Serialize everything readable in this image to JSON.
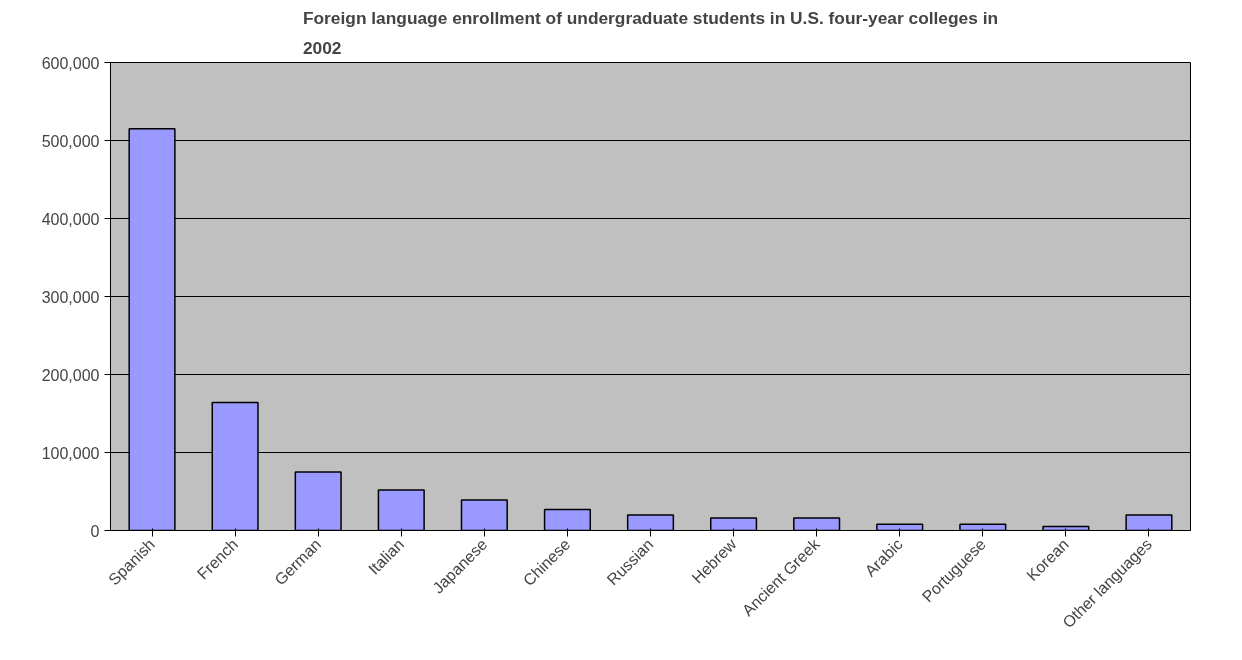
{
  "chart_data": {
    "type": "bar",
    "title": "Foreign language enrollment of undergraduate students in U.S. four-year colleges in\n2002",
    "categories": [
      "Spanish",
      "French",
      "German",
      "Italian",
      "Japanese",
      "Chinese",
      "Russian",
      "Hebrew",
      "Ancient Greek",
      "Arabic",
      "Portuguese",
      "Korean",
      "Other languages"
    ],
    "values": [
      515000,
      164000,
      75000,
      52000,
      39000,
      27000,
      20000,
      16000,
      16000,
      8000,
      8000,
      5000,
      20000
    ],
    "color": "#9999ff",
    "ylim": [
      0,
      600000
    ],
    "yticks": [
      {
        "value": 0,
        "label": "0"
      },
      {
        "value": 100000,
        "label": "100,000"
      },
      {
        "value": 200000,
        "label": "200,000"
      },
      {
        "value": 300000,
        "label": "300,000"
      },
      {
        "value": 400000,
        "label": "400,000"
      },
      {
        "value": 500000,
        "label": "500,000"
      },
      {
        "value": 600000,
        "label": "600,000"
      }
    ],
    "grid": "y"
  }
}
